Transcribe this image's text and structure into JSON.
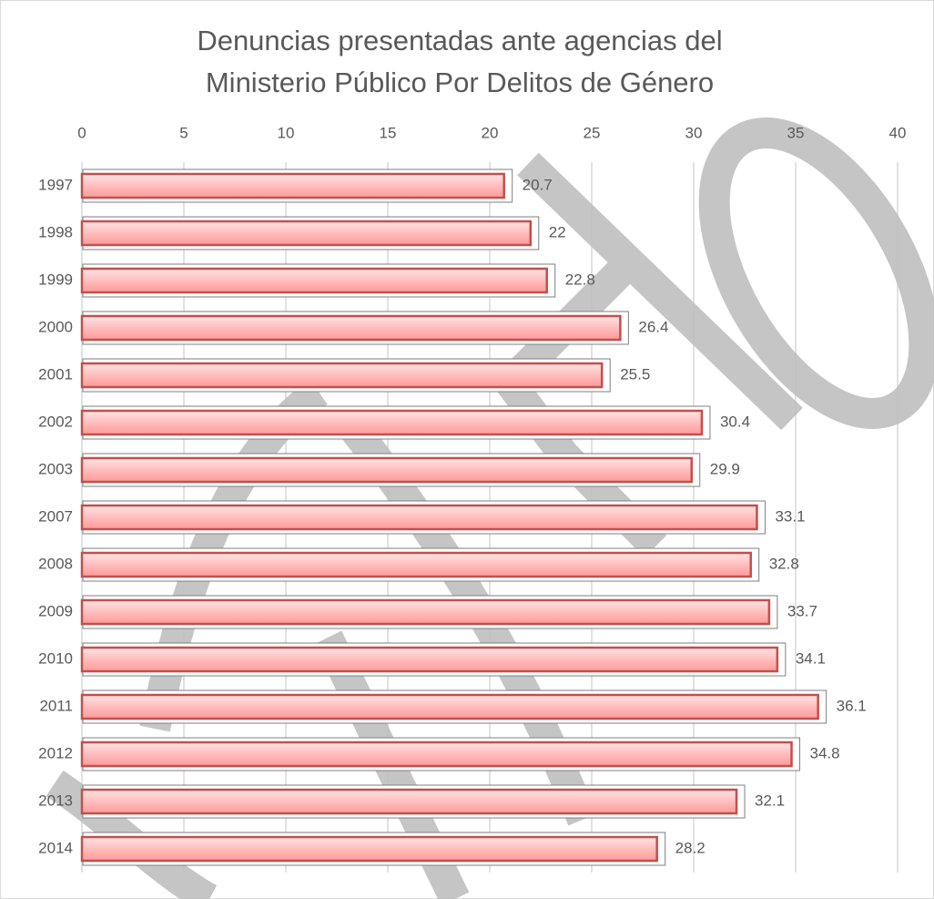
{
  "chart_data": {
    "type": "bar",
    "orientation": "horizontal",
    "title": [
      "Denuncias presentadas ante agencias del",
      "Ministerio Público Por Delitos de Género"
    ],
    "categories": [
      "1997",
      "1998",
      "1999",
      "2000",
      "2001",
      "2002",
      "2003",
      "2007",
      "2008",
      "2009",
      "2010",
      "2011",
      "2012",
      "2013",
      "2014"
    ],
    "values": [
      20.7,
      22,
      22.8,
      26.4,
      25.5,
      30.4,
      29.9,
      33.1,
      32.8,
      33.7,
      34.1,
      36.1,
      34.8,
      32.1,
      28.2
    ],
    "color": "#c0504d",
    "xlim": [
      0,
      40
    ],
    "xticks": [
      0,
      5,
      10,
      15,
      20,
      25,
      30,
      35,
      40
    ],
    "grid": true
  }
}
